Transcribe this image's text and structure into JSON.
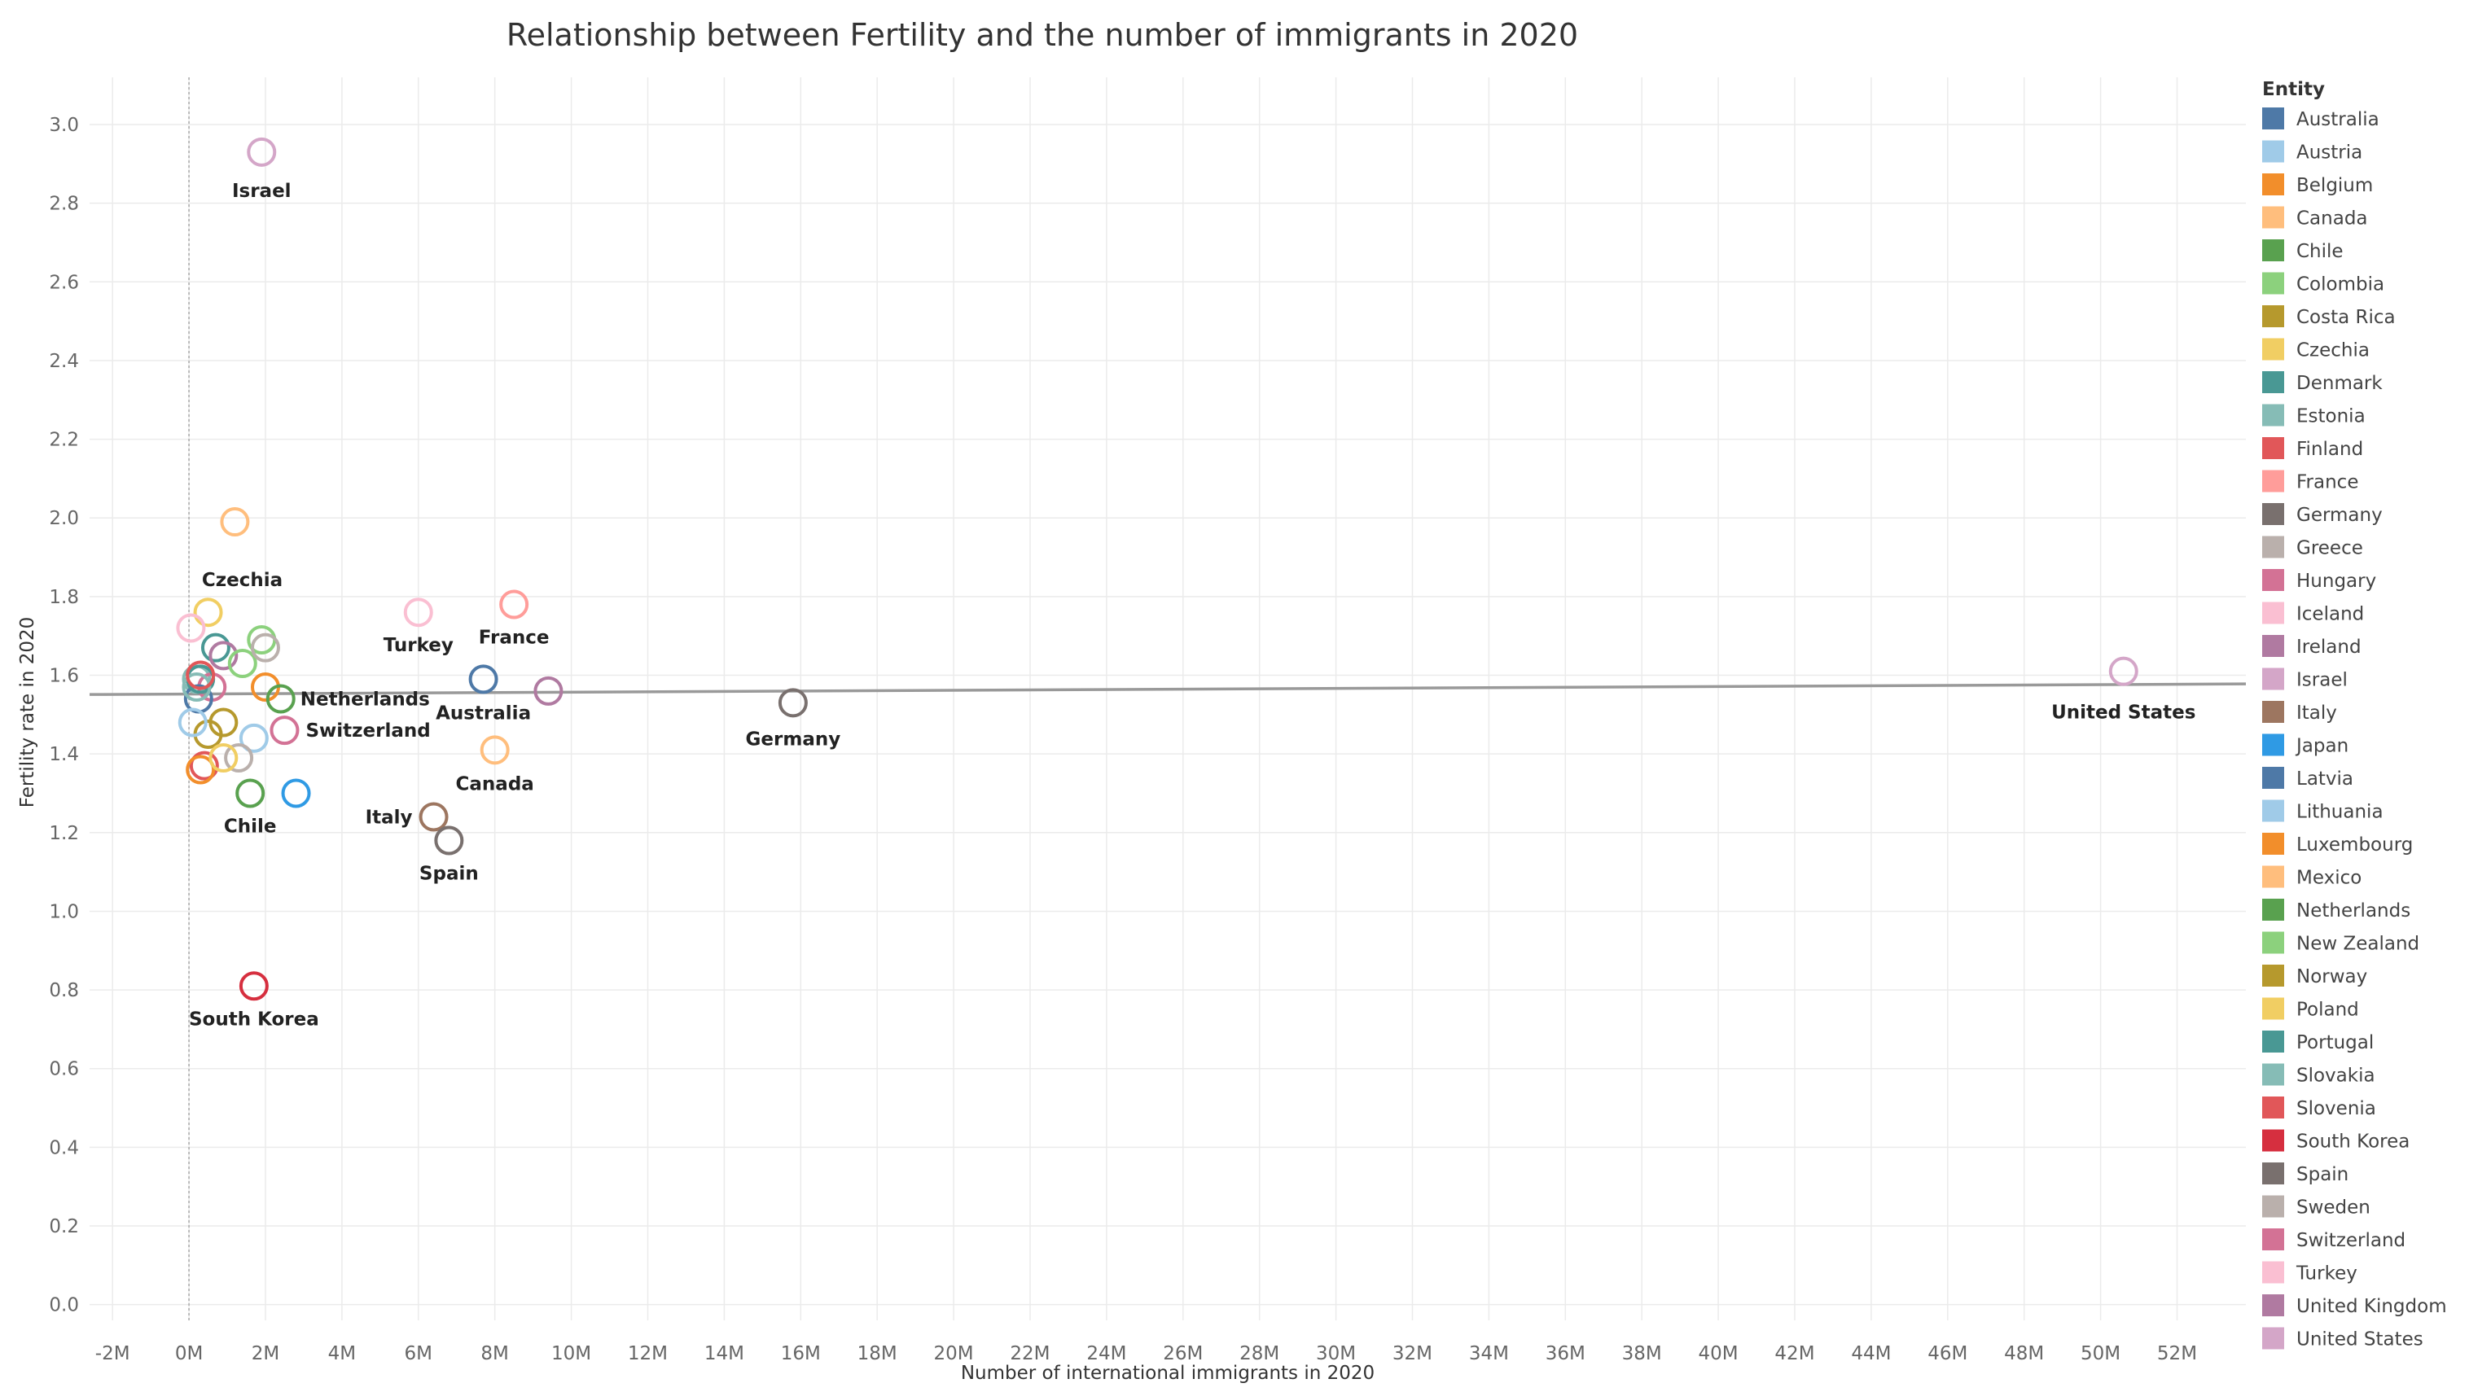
{
  "chart_data": {
    "type": "scatter",
    "title": "Relationship between Fertility and the number of immigrants in 2020",
    "xlabel": "Number of international immigrants in 2020",
    "ylabel": "Fertility rate in 2020",
    "xlim": [
      -2.6,
      53.8
    ],
    "ylim": [
      -0.04,
      3.12
    ],
    "x_ticks": [
      -2,
      0,
      2,
      4,
      6,
      8,
      10,
      12,
      14,
      16,
      18,
      20,
      22,
      24,
      26,
      28,
      30,
      32,
      34,
      36,
      38,
      40,
      42,
      44,
      46,
      48,
      50,
      52
    ],
    "x_tick_labels": [
      "-2M",
      "0M",
      "2M",
      "4M",
      "6M",
      "8M",
      "10M",
      "12M",
      "14M",
      "16M",
      "18M",
      "20M",
      "22M",
      "24M",
      "26M",
      "28M",
      "30M",
      "32M",
      "34M",
      "36M",
      "38M",
      "40M",
      "42M",
      "44M",
      "46M",
      "48M",
      "50M",
      "52M"
    ],
    "y_ticks": [
      0.0,
      0.2,
      0.4,
      0.6,
      0.8,
      1.0,
      1.2,
      1.4,
      1.6,
      1.8,
      2.0,
      2.2,
      2.4,
      2.6,
      2.8,
      3.0
    ],
    "y_tick_labels": [
      "0.0",
      "0.2",
      "0.4",
      "0.6",
      "0.8",
      "1.0",
      "1.2",
      "1.4",
      "1.6",
      "1.8",
      "2.0",
      "2.2",
      "2.4",
      "2.6",
      "2.8",
      "3.0"
    ],
    "trend_line": {
      "x": [
        -2.6,
        53.8
      ],
      "y": [
        1.551,
        1.578
      ],
      "color": "#999999"
    },
    "zero_line_x": 0,
    "legend_title": "Entity",
    "legend_position": "right",
    "points": [
      {
        "entity": "Australia",
        "x": 7.7,
        "y": 1.59,
        "color": "#4e79a7",
        "label": "Australia"
      },
      {
        "entity": "Austria",
        "x": 1.7,
        "y": 1.44,
        "color": "#a0cbe8",
        "label": ""
      },
      {
        "entity": "Belgium",
        "x": 2.0,
        "y": 1.57,
        "color": "#f28e2b",
        "label": ""
      },
      {
        "entity": "Canada",
        "x": 8.0,
        "y": 1.41,
        "color": "#ffbe7d",
        "label": "Canada"
      },
      {
        "entity": "Chile",
        "x": 1.6,
        "y": 1.3,
        "color": "#59a14f",
        "label": "Chile"
      },
      {
        "entity": "Colombia",
        "x": 1.9,
        "y": 1.69,
        "color": "#8cd17d",
        "label": ""
      },
      {
        "entity": "Costa Rica",
        "x": 0.5,
        "y": 1.45,
        "color": "#b6992d",
        "label": ""
      },
      {
        "entity": "Czechia",
        "x": 0.5,
        "y": 1.76,
        "color": "#f1ce63",
        "label": "Czechia"
      },
      {
        "entity": "Denmark",
        "x": 0.7,
        "y": 1.67,
        "color": "#499894",
        "label": ""
      },
      {
        "entity": "Estonia",
        "x": 0.2,
        "y": 1.59,
        "color": "#86bcb6",
        "label": ""
      },
      {
        "entity": "Finland",
        "x": 0.4,
        "y": 1.37,
        "color": "#e15759",
        "label": ""
      },
      {
        "entity": "France",
        "x": 8.5,
        "y": 1.78,
        "color": "#ff9d9a",
        "label": "France"
      },
      {
        "entity": "Germany",
        "x": 15.8,
        "y": 1.53,
        "color": "#79706e",
        "label": "Germany"
      },
      {
        "entity": "Greece",
        "x": 1.3,
        "y": 1.39,
        "color": "#bab0ac",
        "label": ""
      },
      {
        "entity": "Hungary",
        "x": 0.6,
        "y": 1.57,
        "color": "#d37295",
        "label": ""
      },
      {
        "entity": "Iceland",
        "x": 0.05,
        "y": 1.72,
        "color": "#fabfd2",
        "label": ""
      },
      {
        "entity": "Ireland",
        "x": 0.9,
        "y": 1.65,
        "color": "#b07aa1",
        "label": ""
      },
      {
        "entity": "Israel",
        "x": 1.9,
        "y": 2.93,
        "color": "#d4a6c8",
        "label": "Israel"
      },
      {
        "entity": "Italy",
        "x": 6.4,
        "y": 1.24,
        "color": "#9d7660",
        "label": "Italy"
      },
      {
        "entity": "Japan",
        "x": 2.8,
        "y": 1.3,
        "color": "#2f9ae4",
        "label": ""
      },
      {
        "entity": "Latvia",
        "x": 0.25,
        "y": 1.54,
        "color": "#4e79a7",
        "label": ""
      },
      {
        "entity": "Lithuania",
        "x": 0.1,
        "y": 1.48,
        "color": "#a0cbe8",
        "label": ""
      },
      {
        "entity": "Luxembourg",
        "x": 0.3,
        "y": 1.36,
        "color": "#f28e2b",
        "label": ""
      },
      {
        "entity": "Mexico",
        "x": 1.2,
        "y": 1.99,
        "color": "#ffbe7d",
        "label": ""
      },
      {
        "entity": "Netherlands",
        "x": 2.4,
        "y": 1.54,
        "color": "#59a14f",
        "label": "Netherlands"
      },
      {
        "entity": "New Zealand",
        "x": 1.4,
        "y": 1.63,
        "color": "#8cd17d",
        "label": ""
      },
      {
        "entity": "Norway",
        "x": 0.9,
        "y": 1.48,
        "color": "#b6992d",
        "label": ""
      },
      {
        "entity": "Poland",
        "x": 0.9,
        "y": 1.39,
        "color": "#f1ce63",
        "label": ""
      },
      {
        "entity": "Portugal",
        "x": 0.3,
        "y": 1.59,
        "color": "#499894",
        "label": ""
      },
      {
        "entity": "Slovakia",
        "x": 0.2,
        "y": 1.57,
        "color": "#86bcb6",
        "label": ""
      },
      {
        "entity": "Slovenia",
        "x": 0.3,
        "y": 1.6,
        "color": "#e15759",
        "label": ""
      },
      {
        "entity": "South Korea",
        "x": 1.7,
        "y": 0.81,
        "color": "#d62f3f",
        "label": "South Korea"
      },
      {
        "entity": "Spain",
        "x": 6.8,
        "y": 1.18,
        "color": "#79706e",
        "label": "Spain"
      },
      {
        "entity": "Sweden",
        "x": 2.0,
        "y": 1.67,
        "color": "#bab0ac",
        "label": ""
      },
      {
        "entity": "Switzerland",
        "x": 2.5,
        "y": 1.46,
        "color": "#d37295",
        "label": "Switzerland"
      },
      {
        "entity": "Turkey",
        "x": 6.0,
        "y": 1.76,
        "color": "#fabfd2",
        "label": "Turkey"
      },
      {
        "entity": "United Kingdom",
        "x": 9.4,
        "y": 1.56,
        "color": "#b07aa1",
        "label": ""
      },
      {
        "entity": "United States",
        "x": 50.6,
        "y": 1.61,
        "color": "#d4a6c8",
        "label": "United States"
      }
    ]
  }
}
